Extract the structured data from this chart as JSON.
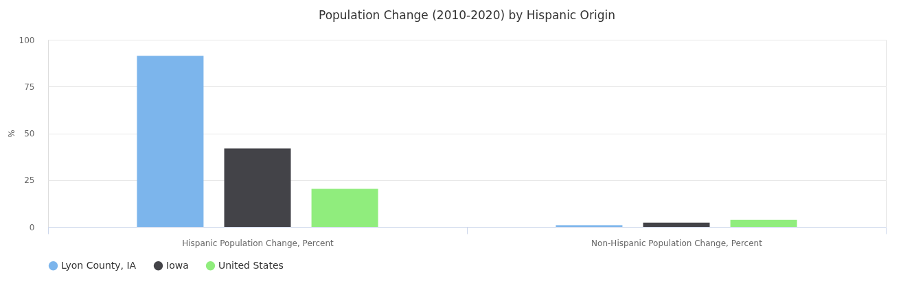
{
  "chart_data": {
    "type": "bar",
    "title": "Population Change (2010-2020) by Hispanic Origin",
    "ylabel": "%",
    "categories": [
      "Hispanic Population Change, Percent",
      "Non-Hispanic Population Change, Percent"
    ],
    "series": [
      {
        "name": "Lyon County, IA",
        "color": "#7cb5ec",
        "values": [
          91.4,
          0.9
        ]
      },
      {
        "name": "Iowa",
        "color": "#434348",
        "values": [
          41.9,
          2.3
        ]
      },
      {
        "name": "United States",
        "color": "#90ed7d",
        "values": [
          20.3,
          3.8
        ]
      }
    ],
    "ylim": [
      0,
      100
    ],
    "yticks": [
      0,
      25,
      50,
      75,
      100
    ],
    "grid": "y",
    "legend": "bottom"
  }
}
